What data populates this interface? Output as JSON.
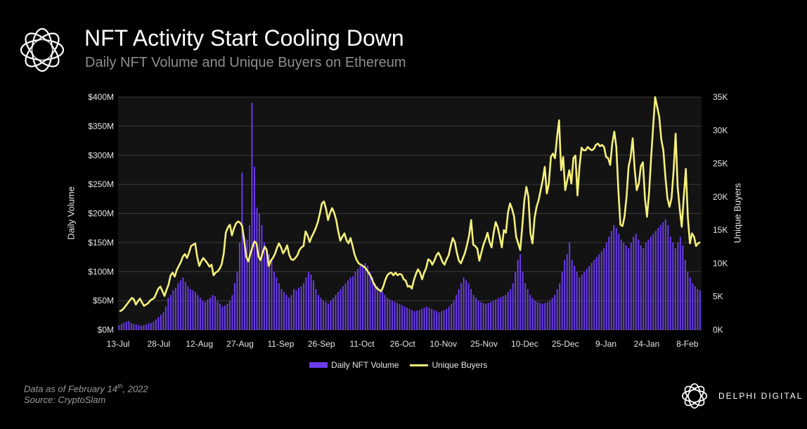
{
  "header": {
    "title": "NFT Activity Start Cooling Down",
    "subtitle": "Daily NFT Volume and Unique Buyers on Ethereum"
  },
  "footer": {
    "note_prefix": "Data as of February 14",
    "note_sup": "th",
    "note_suffix": ", 2022",
    "source": "Source:  CryptoSlam",
    "brand": "DELPHI DIGITAL"
  },
  "icons": {
    "logo": "flower-outline-icon",
    "brand_logo": "flower-outline-icon"
  },
  "colors": {
    "volume": "#6c3cf0",
    "buyers": "#f5f07a",
    "background": "#000000",
    "plot_bg": "#131313",
    "grid": "#3a3a3a"
  },
  "chart_data": {
    "type": "bar",
    "ylabel": "Daily Volume",
    "y2label": "Unique Buyers",
    "ylim": [
      0,
      400
    ],
    "y2lim": [
      0,
      35
    ],
    "yticks": [
      "$0M",
      "$50M",
      "$100M",
      "$150M",
      "$200M",
      "$250M",
      "$300M",
      "$350M",
      "$400M"
    ],
    "y2ticks": [
      "0K",
      "5K",
      "10K",
      "15K",
      "20K",
      "25K",
      "30K",
      "35K"
    ],
    "xticks": [
      "13-Jul",
      "28-Jul",
      "12-Aug",
      "27-Aug",
      "11-Sep",
      "26-Sep",
      "11-Oct",
      "26-Oct",
      "10-Nov",
      "25-Nov",
      "10-Dec",
      "25-Dec",
      "9-Jan",
      "24-Jan",
      "8-Feb"
    ],
    "grid": true,
    "legend_position": "bottom",
    "series": [
      {
        "name": "Daily NFT Volume",
        "axis": "left",
        "unit": "$M",
        "values": [
          8,
          10,
          12,
          14,
          15,
          12,
          10,
          9,
          8,
          7,
          8,
          9,
          11,
          12,
          14,
          18,
          22,
          26,
          30,
          40,
          55,
          60,
          68,
          72,
          80,
          85,
          90,
          82,
          75,
          70,
          68,
          65,
          60,
          55,
          50,
          48,
          52,
          55,
          60,
          58,
          50,
          45,
          40,
          42,
          45,
          50,
          60,
          80,
          100,
          150,
          270,
          160,
          155,
          180,
          390,
          280,
          210,
          200,
          180,
          150,
          140,
          130,
          120,
          100,
          90,
          80,
          70,
          65,
          60,
          55,
          60,
          70,
          68,
          72,
          75,
          80,
          90,
          100,
          95,
          85,
          70,
          60,
          55,
          50,
          48,
          45,
          50,
          55,
          60,
          65,
          70,
          75,
          80,
          85,
          90,
          92,
          100,
          105,
          110,
          112,
          115,
          110,
          100,
          90,
          80,
          75,
          70,
          65,
          60,
          55,
          52,
          50,
          48,
          46,
          44,
          42,
          40,
          38,
          36,
          34,
          32,
          33,
          34,
          36,
          38,
          40,
          38,
          36,
          34,
          32,
          30,
          32,
          34,
          36,
          40,
          45,
          50,
          60,
          70,
          80,
          90,
          85,
          80,
          70,
          60,
          55,
          50,
          48,
          46,
          45,
          46,
          48,
          50,
          52,
          54,
          56,
          58,
          60,
          65,
          70,
          80,
          100,
          120,
          130,
          100,
          80,
          70,
          60,
          55,
          50,
          48,
          46,
          45,
          46,
          48,
          50,
          55,
          60,
          70,
          80,
          100,
          120,
          130,
          150,
          120,
          110,
          100,
          90,
          95,
          100,
          105,
          110,
          115,
          120,
          125,
          130,
          135,
          140,
          150,
          160,
          170,
          180,
          175,
          165,
          155,
          150,
          145,
          140,
          150,
          160,
          165,
          155,
          145,
          140,
          150,
          155,
          160,
          165,
          170,
          175,
          180,
          185,
          190,
          180,
          160,
          150,
          140,
          150,
          160,
          145,
          120,
          100,
          90,
          80,
          75,
          70,
          68
        ]
      },
      {
        "name": "Unique Buyers",
        "axis": "right",
        "unit": "K",
        "values": [
          2.8,
          2.9,
          3.2,
          3.6,
          4.0,
          4.4,
          4.8,
          4.6,
          3.8,
          4.3,
          4.7,
          4.1,
          3.6,
          3.8,
          4.0,
          4.4,
          4.6,
          4.8,
          5.5,
          6.2,
          6.5,
          5.8,
          5.1,
          6.0,
          6.8,
          8.2,
          8.6,
          8.0,
          9.0,
          9.6,
          10.2,
          11.0,
          11.4,
          10.8,
          11.6,
          12.6,
          12.8,
          13.0,
          11.0,
          9.6,
          10.3,
          10.8,
          10.4,
          10.0,
          9.5,
          9.8,
          8.2,
          8.6,
          8.8,
          9.2,
          9.9,
          11.5,
          14.6,
          15.4,
          15.8,
          14.2,
          15.3,
          16.0,
          16.3,
          16.1,
          15.6,
          13.4,
          11.0,
          10.3,
          11.4,
          12.4,
          13.3,
          13.0,
          11.0,
          10.5,
          11.6,
          12.5,
          12.0,
          9.6,
          10.4,
          10.8,
          11.4,
          12.3,
          13.0,
          12.4,
          11.5,
          12.0,
          12.7,
          11.3,
          10.6,
          10.5,
          10.8,
          11.2,
          12.0,
          12.4,
          12.6,
          14.8,
          14.2,
          13.2,
          14.0,
          14.6,
          15.3,
          16.2,
          17.5,
          19.0,
          19.3,
          18.2,
          16.5,
          17.6,
          18.3,
          17.6,
          16.5,
          14.8,
          13.4,
          14.0,
          14.5,
          13.5,
          13.0,
          13.8,
          12.6,
          11.3,
          10.5,
          10.0,
          9.8,
          9.6,
          9.4,
          9.0,
          8.5,
          8.0,
          7.2,
          6.6,
          6.2,
          6.0,
          5.8,
          6.5,
          7.5,
          8.2,
          8.5,
          8.6,
          8.2,
          8.6,
          8.2,
          8.4,
          8.3,
          7.6,
          7.4,
          6.5,
          6.6,
          6.2,
          7.5,
          8.4,
          9.1,
          8.6,
          7.6,
          8.6,
          9.3,
          10.6,
          10.4,
          9.8,
          10.4,
          11.2,
          11.6,
          11.0,
          10.2,
          9.8,
          10.6,
          11.2,
          12.6,
          13.8,
          13.2,
          11.6,
          10.4,
          10.0,
          10.8,
          11.6,
          12.8,
          14.2,
          16.5,
          12.8,
          12.6,
          12.2,
          10.4,
          11.6,
          12.8,
          13.6,
          14.6,
          13.2,
          12.4,
          14.6,
          16.2,
          15.4,
          14.0,
          12.4,
          15.0,
          14.6,
          17.6,
          19.0,
          18.2,
          17.0,
          14.0,
          13.0,
          12.0,
          15.5,
          19.4,
          21.5,
          20.0,
          14.5,
          13.0,
          16.8,
          18.5,
          19.5,
          21.0,
          22.5,
          24.5,
          20.5,
          22.0,
          26.0,
          26.5,
          25.8,
          29.0,
          31.5,
          24.0,
          26.0,
          21.0,
          22.5,
          24.0,
          22.0,
          25.8,
          26.2,
          20.2,
          24.6,
          27.4,
          27.0,
          27.0,
          27.5,
          27.2,
          27.0,
          27.2,
          27.8,
          28.0,
          27.6,
          27.8,
          27.5,
          26.0,
          25.8,
          24.8,
          28.0,
          29.8,
          27.5,
          21.0,
          15.8,
          15.6,
          17.0,
          20.0,
          24.5,
          26.0,
          28.8,
          24.0,
          21.0,
          22.0,
          24.6,
          25.2,
          19.8,
          17.0,
          20.5,
          25.8,
          30.5,
          35.0,
          33.5,
          32.0,
          28.6,
          27.0,
          23.0,
          19.8,
          18.5,
          19.8,
          23.8,
          29.5,
          21.5,
          18.2,
          15.5,
          20.0,
          24.2,
          16.8,
          13.0,
          14.5,
          14.0,
          12.6,
          13.0,
          13.2
        ]
      }
    ]
  }
}
